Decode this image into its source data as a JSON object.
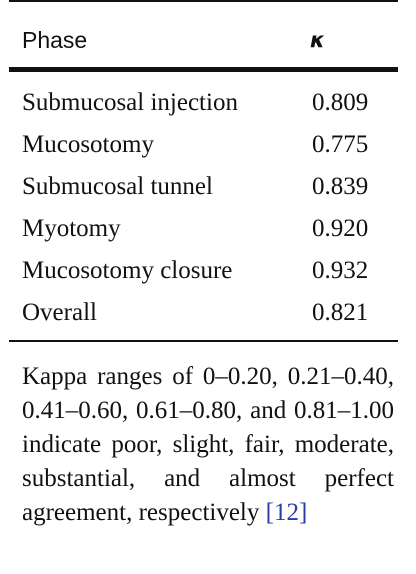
{
  "table": {
    "header": {
      "phase": "Phase",
      "kappa": "κ"
    },
    "rows": [
      {
        "phase": "Submucosal injection",
        "kappa": "0.809"
      },
      {
        "phase": "Mucosotomy",
        "kappa": "0.775"
      },
      {
        "phase": "Submucosal tunnel",
        "kappa": "0.839"
      },
      {
        "phase": "Myotomy",
        "kappa": "0.920"
      },
      {
        "phase": "Mucosotomy closure",
        "kappa": "0.932"
      },
      {
        "phase": "Overall",
        "kappa": "0.821"
      }
    ]
  },
  "footnote": {
    "text": "Kappa ranges of 0–0.20, 0.21–0.40, 0.41–0.60, 0.61–0.80, and 0.81–1.00 indicate poor, slight, fair, moderate, substantial, and almost perfect agreement, respectively ",
    "ref": "[12]"
  }
}
